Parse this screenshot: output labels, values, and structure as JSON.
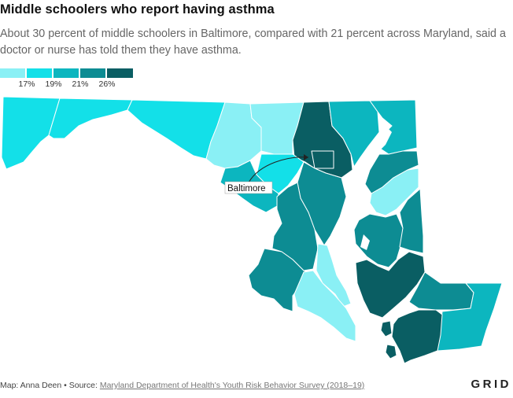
{
  "header": {
    "title": "Middle schoolers who report having asthma",
    "subtitle": "About 30 percent of middle schoolers in Baltimore, compared with 21 percent across Maryland, said a doctor or nurse has told them they have asthma."
  },
  "legend": {
    "colors": [
      "#8af0f5",
      "#13e0e8",
      "#0cb6bf",
      "#0d8c93",
      "#0a5e63"
    ],
    "labels": [
      "17%",
      "19%",
      "21%",
      "26%"
    ]
  },
  "map": {
    "annotation": "Baltimore",
    "stroke_color": "#ffffff"
  },
  "footer": {
    "credit": "Map: Anna Deen • Source: ",
    "source": "Maryland Department of Health's Youth Risk Behavior Survey (2018–19)",
    "logo": "GRID"
  }
}
